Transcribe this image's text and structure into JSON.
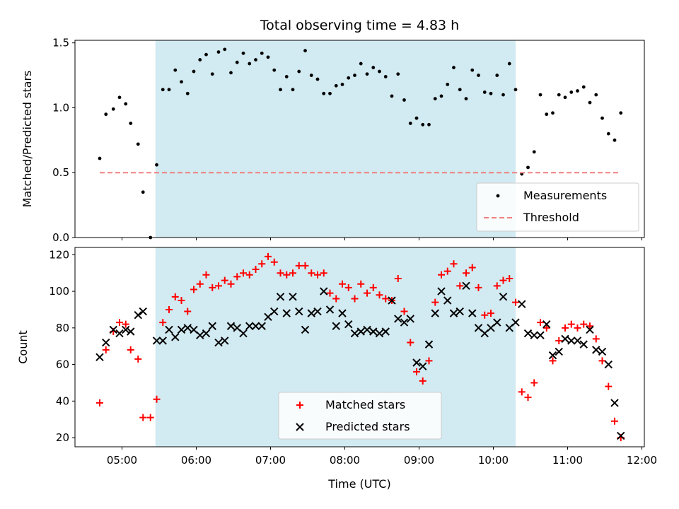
{
  "chart_data": [
    {
      "type": "scatter",
      "title": "Total observing time = 4.83 h",
      "ylabel": "Matched/Predicted stars",
      "ylim": [
        0,
        1.52
      ],
      "xlim": [
        "04:22",
        "12:02"
      ],
      "yticks": [
        "0.0",
        "0.5",
        "1.0",
        "1.5"
      ],
      "shaded_interval": [
        "05:27",
        "10:18"
      ],
      "shade_color": "#add8e6",
      "legend": "lower-right",
      "series": [
        {
          "name": "Measurements",
          "marker": "dot",
          "color": "#000000",
          "points": [
            [
              "04:42",
              0.61
            ],
            [
              "04:47",
              0.95
            ],
            [
              "04:53",
              0.99
            ],
            [
              "04:58",
              1.08
            ],
            [
              "05:03",
              1.03
            ],
            [
              "05:07",
              0.88
            ],
            [
              "05:13",
              0.72
            ],
            [
              "05:17",
              0.35
            ],
            [
              "05:23",
              0.0
            ],
            [
              "05:28",
              0.56
            ],
            [
              "05:33",
              1.14
            ],
            [
              "05:38",
              1.14
            ],
            [
              "05:43",
              1.29
            ],
            [
              "05:48",
              1.2
            ],
            [
              "05:53",
              1.11
            ],
            [
              "05:58",
              1.28
            ],
            [
              "06:03",
              1.37
            ],
            [
              "06:08",
              1.41
            ],
            [
              "06:13",
              1.26
            ],
            [
              "06:18",
              1.43
            ],
            [
              "06:23",
              1.45
            ],
            [
              "06:28",
              1.27
            ],
            [
              "06:33",
              1.35
            ],
            [
              "06:38",
              1.42
            ],
            [
              "06:43",
              1.34
            ],
            [
              "06:48",
              1.37
            ],
            [
              "06:53",
              1.42
            ],
            [
              "06:58",
              1.39
            ],
            [
              "07:03",
              1.29
            ],
            [
              "07:08",
              1.14
            ],
            [
              "07:13",
              1.24
            ],
            [
              "07:18",
              1.14
            ],
            [
              "07:23",
              1.28
            ],
            [
              "07:28",
              1.44
            ],
            [
              "07:33",
              1.25
            ],
            [
              "07:38",
              1.22
            ],
            [
              "07:43",
              1.11
            ],
            [
              "07:48",
              1.11
            ],
            [
              "07:53",
              1.17
            ],
            [
              "07:58",
              1.18
            ],
            [
              "08:03",
              1.23
            ],
            [
              "08:08",
              1.25
            ],
            [
              "08:13",
              1.34
            ],
            [
              "08:18",
              1.26
            ],
            [
              "08:23",
              1.31
            ],
            [
              "08:28",
              1.28
            ],
            [
              "08:33",
              1.24
            ],
            [
              "08:38",
              1.09
            ],
            [
              "08:43",
              1.26
            ],
            [
              "08:48",
              1.06
            ],
            [
              "08:53",
              0.88
            ],
            [
              "08:58",
              0.92
            ],
            [
              "09:03",
              0.87
            ],
            [
              "09:08",
              0.87
            ],
            [
              "09:13",
              1.07
            ],
            [
              "09:18",
              1.09
            ],
            [
              "09:23",
              1.18
            ],
            [
              "09:28",
              1.31
            ],
            [
              "09:33",
              1.14
            ],
            [
              "09:38",
              1.07
            ],
            [
              "09:43",
              1.29
            ],
            [
              "09:48",
              1.25
            ],
            [
              "09:53",
              1.12
            ],
            [
              "09:58",
              1.11
            ],
            [
              "10:03",
              1.25
            ],
            [
              "10:08",
              1.1
            ],
            [
              "10:13",
              1.34
            ],
            [
              "10:18",
              1.14
            ],
            [
              "10:23",
              0.49
            ],
            [
              "10:28",
              0.54
            ],
            [
              "10:33",
              0.66
            ],
            [
              "10:38",
              1.1
            ],
            [
              "10:43",
              0.95
            ],
            [
              "10:48",
              0.96
            ],
            [
              "10:53",
              1.1
            ],
            [
              "10:58",
              1.08
            ],
            [
              "11:03",
              1.12
            ],
            [
              "11:08",
              1.13
            ],
            [
              "11:13",
              1.16
            ],
            [
              "11:18",
              1.04
            ],
            [
              "11:23",
              1.1
            ],
            [
              "11:28",
              0.92
            ],
            [
              "11:33",
              0.8
            ],
            [
              "11:38",
              0.75
            ],
            [
              "11:43",
              0.96
            ]
          ]
        },
        {
          "name": "Threshold",
          "style": "dashed-line",
          "color": "#f08080",
          "points": [
            [
              "04:42",
              0.5
            ],
            [
              "11:43",
              0.5
            ]
          ]
        }
      ]
    },
    {
      "type": "scatter",
      "xlabel": "Time (UTC)",
      "ylabel": "Count",
      "ylim": [
        15,
        124
      ],
      "xlim": [
        "04:22",
        "12:02"
      ],
      "xticks": [
        "05:00",
        "06:00",
        "07:00",
        "08:00",
        "09:00",
        "10:00",
        "11:00",
        "12:00"
      ],
      "yticks": [
        "20",
        "40",
        "60",
        "80",
        "100",
        "120"
      ],
      "shaded_interval": [
        "05:27",
        "10:18"
      ],
      "shade_color": "#add8e6",
      "legend": "bottom-center",
      "series": [
        {
          "name": "Matched stars",
          "marker": "plus",
          "color": "#ff0000",
          "points": [
            [
              "04:42",
              39
            ],
            [
              "04:47",
              68
            ],
            [
              "04:53",
              78
            ],
            [
              "04:58",
              83
            ],
            [
              "05:03",
              82
            ],
            [
              "05:07",
              68
            ],
            [
              "05:13",
              63
            ],
            [
              "05:17",
              31
            ],
            [
              "05:23",
              31
            ],
            [
              "05:28",
              41
            ],
            [
              "05:33",
              83
            ],
            [
              "05:38",
              90
            ],
            [
              "05:43",
              97
            ],
            [
              "05:48",
              95
            ],
            [
              "05:53",
              89
            ],
            [
              "05:58",
              101
            ],
            [
              "06:03",
              104
            ],
            [
              "06:08",
              109
            ],
            [
              "06:13",
              102
            ],
            [
              "06:18",
              103
            ],
            [
              "06:23",
              106
            ],
            [
              "06:28",
              104
            ],
            [
              "06:33",
              108
            ],
            [
              "06:38",
              110
            ],
            [
              "06:43",
              109
            ],
            [
              "06:48",
              112
            ],
            [
              "06:53",
              115
            ],
            [
              "06:58",
              119
            ],
            [
              "07:03",
              116
            ],
            [
              "07:08",
              110
            ],
            [
              "07:13",
              109
            ],
            [
              "07:18",
              110
            ],
            [
              "07:23",
              114
            ],
            [
              "07:28",
              114
            ],
            [
              "07:33",
              110
            ],
            [
              "07:38",
              109
            ],
            [
              "07:43",
              110
            ],
            [
              "07:48",
              99
            ],
            [
              "07:53",
              96
            ],
            [
              "07:58",
              104
            ],
            [
              "08:03",
              102
            ],
            [
              "08:08",
              96
            ],
            [
              "08:13",
              104
            ],
            [
              "08:18",
              99
            ],
            [
              "08:23",
              102
            ],
            [
              "08:28",
              98
            ],
            [
              "08:33",
              96
            ],
            [
              "08:38",
              95
            ],
            [
              "08:43",
              107
            ],
            [
              "08:48",
              89
            ],
            [
              "08:53",
              72
            ],
            [
              "08:58",
              56
            ],
            [
              "09:03",
              51
            ],
            [
              "09:08",
              62
            ],
            [
              "09:13",
              94
            ],
            [
              "09:18",
              109
            ],
            [
              "09:23",
              111
            ],
            [
              "09:28",
              115
            ],
            [
              "09:33",
              103
            ],
            [
              "09:38",
              110
            ],
            [
              "09:43",
              113
            ],
            [
              "09:48",
              102
            ],
            [
              "09:53",
              87
            ],
            [
              "09:58",
              88
            ],
            [
              "10:03",
              103
            ],
            [
              "10:08",
              106
            ],
            [
              "10:13",
              107
            ],
            [
              "10:18",
              94
            ],
            [
              "10:23",
              45
            ],
            [
              "10:28",
              42
            ],
            [
              "10:33",
              50
            ],
            [
              "10:38",
              83
            ],
            [
              "10:43",
              80
            ],
            [
              "10:48",
              62
            ],
            [
              "10:53",
              73
            ],
            [
              "10:58",
              80
            ],
            [
              "11:03",
              82
            ],
            [
              "11:08",
              80
            ],
            [
              "11:13",
              82
            ],
            [
              "11:18",
              81
            ],
            [
              "11:23",
              74
            ],
            [
              "11:28",
              62
            ],
            [
              "11:33",
              48
            ],
            [
              "11:38",
              29
            ],
            [
              "11:43",
              20
            ]
          ]
        },
        {
          "name": "Predicted stars",
          "marker": "x",
          "color": "#000000",
          "points": [
            [
              "04:42",
              64
            ],
            [
              "04:47",
              72
            ],
            [
              "04:53",
              79
            ],
            [
              "04:58",
              77
            ],
            [
              "05:03",
              79
            ],
            [
              "05:07",
              78
            ],
            [
              "05:13",
              87
            ],
            [
              "05:17",
              89
            ],
            [
              "05:28",
              73
            ],
            [
              "05:33",
              73
            ],
            [
              "05:38",
              79
            ],
            [
              "05:43",
              75
            ],
            [
              "05:48",
              79
            ],
            [
              "05:53",
              80
            ],
            [
              "05:58",
              79
            ],
            [
              "06:03",
              76
            ],
            [
              "06:08",
              77
            ],
            [
              "06:13",
              81
            ],
            [
              "06:18",
              72
            ],
            [
              "06:23",
              73
            ],
            [
              "06:28",
              81
            ],
            [
              "06:33",
              80
            ],
            [
              "06:38",
              77
            ],
            [
              "06:43",
              81
            ],
            [
              "06:48",
              81
            ],
            [
              "06:53",
              81
            ],
            [
              "06:58",
              86
            ],
            [
              "07:03",
              89
            ],
            [
              "07:08",
              97
            ],
            [
              "07:13",
              88
            ],
            [
              "07:18",
              97
            ],
            [
              "07:23",
              89
            ],
            [
              "07:28",
              79
            ],
            [
              "07:33",
              88
            ],
            [
              "07:38",
              89
            ],
            [
              "07:43",
              100
            ],
            [
              "07:48",
              90
            ],
            [
              "07:53",
              81
            ],
            [
              "07:58",
              88
            ],
            [
              "08:03",
              82
            ],
            [
              "08:08",
              77
            ],
            [
              "08:13",
              78
            ],
            [
              "08:18",
              79
            ],
            [
              "08:23",
              78
            ],
            [
              "08:28",
              77
            ],
            [
              "08:33",
              78
            ],
            [
              "08:38",
              95
            ],
            [
              "08:43",
              85
            ],
            [
              "08:48",
              83
            ],
            [
              "08:53",
              85
            ],
            [
              "08:58",
              61
            ],
            [
              "09:03",
              59
            ],
            [
              "09:08",
              71
            ],
            [
              "09:13",
              88
            ],
            [
              "09:18",
              100
            ],
            [
              "09:23",
              95
            ],
            [
              "09:28",
              88
            ],
            [
              "09:33",
              89
            ],
            [
              "09:38",
              103
            ],
            [
              "09:43",
              88
            ],
            [
              "09:48",
              80
            ],
            [
              "09:53",
              77
            ],
            [
              "09:58",
              80
            ],
            [
              "10:03",
              83
            ],
            [
              "10:08",
              97
            ],
            [
              "10:13",
              80
            ],
            [
              "10:18",
              83
            ],
            [
              "10:23",
              93
            ],
            [
              "10:28",
              77
            ],
            [
              "10:33",
              76
            ],
            [
              "10:38",
              76
            ],
            [
              "10:43",
              82
            ],
            [
              "10:48",
              65
            ],
            [
              "10:53",
              67
            ],
            [
              "10:58",
              74
            ],
            [
              "11:03",
              73
            ],
            [
              "11:08",
              73
            ],
            [
              "11:13",
              71
            ],
            [
              "11:18",
              79
            ],
            [
              "11:23",
              68
            ],
            [
              "11:28",
              67
            ],
            [
              "11:33",
              60
            ],
            [
              "11:38",
              39
            ],
            [
              "11:43",
              21
            ]
          ]
        }
      ]
    }
  ]
}
